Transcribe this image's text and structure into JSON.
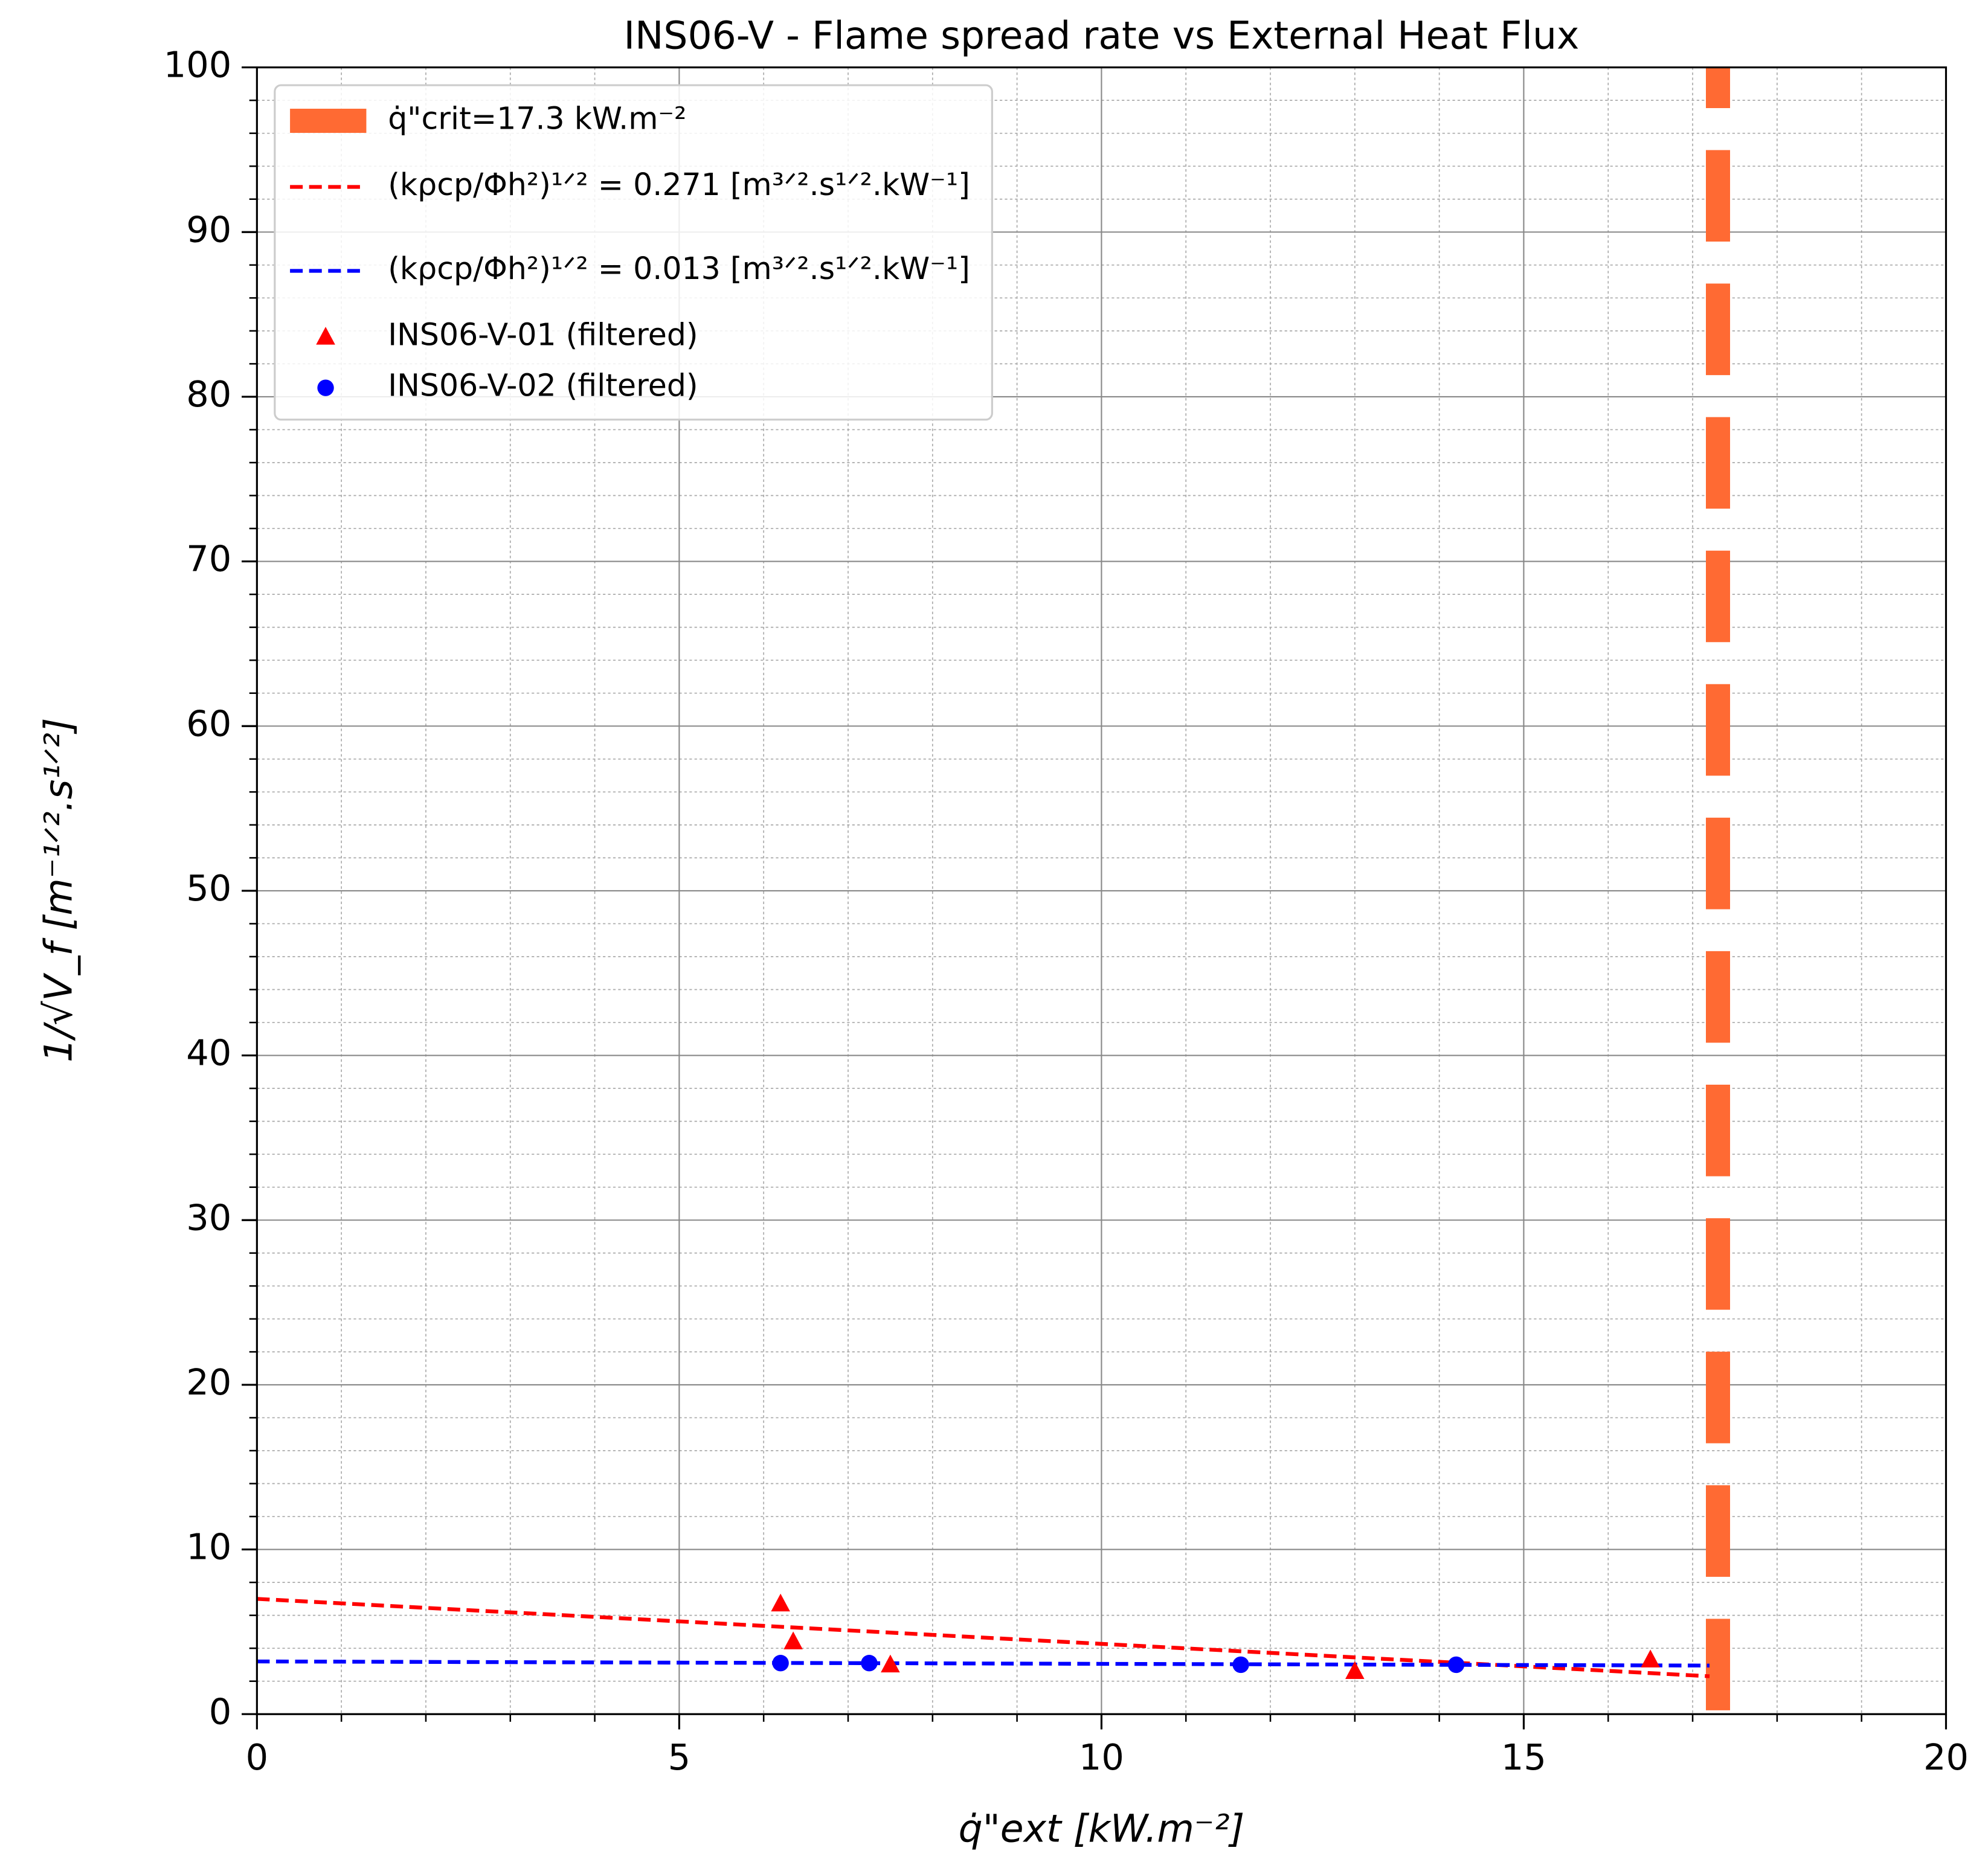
{
  "chart_data": {
    "type": "scatter",
    "title": "INS06-V - Flame spread rate vs External Heat Flux",
    "x_label": "q̇\"ext [kW.m⁻²]",
    "y_label": "1/√V_f  [m⁻¹ᐟ².s¹ᐟ²]",
    "xlim": [
      0,
      20
    ],
    "ylim": [
      0,
      100
    ],
    "xticks": [
      0,
      5,
      10,
      15,
      20
    ],
    "yticks": [
      0,
      10,
      20,
      30,
      40,
      50,
      60,
      70,
      80,
      90,
      100
    ],
    "xminorticks": [
      1,
      2,
      3,
      4,
      6,
      7,
      8,
      9,
      11,
      12,
      13,
      14,
      16,
      17,
      18,
      19
    ],
    "yminorticks": [
      2,
      4,
      6,
      8,
      12,
      14,
      16,
      18,
      22,
      24,
      26,
      28,
      32,
      34,
      36,
      38,
      42,
      44,
      46,
      48,
      52,
      54,
      56,
      58,
      62,
      64,
      66,
      68,
      72,
      74,
      76,
      78,
      82,
      84,
      86,
      88,
      92,
      94,
      96,
      98
    ],
    "grid": true,
    "legend": "upper left",
    "critical_line": {
      "name": "q̇\"crit=17.3 kW.m⁻²",
      "x": 17.3,
      "color": "#ff6a33"
    },
    "fits": [
      {
        "name": "(kρcp/Φh²)¹ᐟ² = 0.271 [m³ᐟ².s¹ᐟ².kW⁻¹]",
        "color": "#ff0000",
        "x": [
          0,
          17.2
        ],
        "values": [
          7.0,
          2.3
        ]
      },
      {
        "name": "(kρcp/Φh²)¹ᐟ² = 0.013 [m³ᐟ².s¹ᐟ².kW⁻¹]",
        "color": "#0000ff",
        "x": [
          0,
          17.2
        ],
        "values": [
          3.2,
          2.95
        ]
      }
    ],
    "series": [
      {
        "name": "INS06-V-01 (filtered)",
        "color": "#ff0000",
        "marker": "triangle",
        "x": [
          6.2,
          6.35,
          7.5,
          13.0,
          16.5
        ],
        "values": [
          6.7,
          4.4,
          3.0,
          2.6,
          3.3
        ]
      },
      {
        "name": "INS06-V-02 (filtered)",
        "color": "#0000ff",
        "marker": "circle",
        "x": [
          6.2,
          7.25,
          11.65,
          14.2
        ],
        "values": [
          3.1,
          3.1,
          3.0,
          3.0
        ]
      }
    ]
  }
}
